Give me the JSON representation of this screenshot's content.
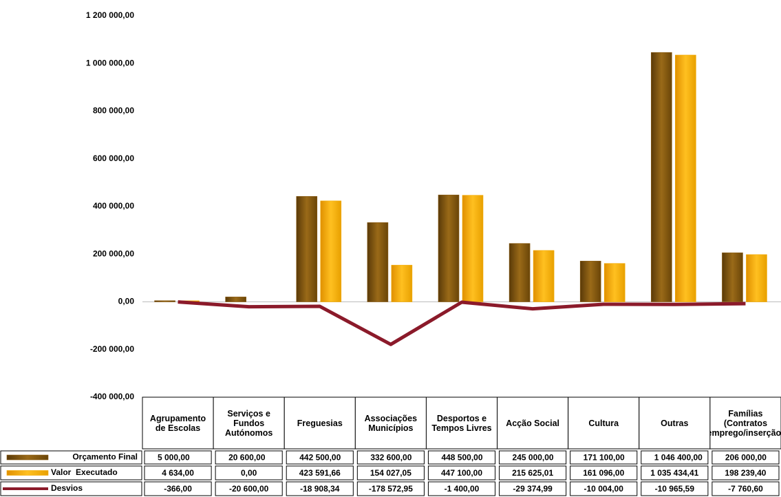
{
  "chart_data": {
    "type": "bar",
    "categories": [
      "Agrupamento de Escolas",
      "Serviços e Fundos Autónomos",
      "Freguesias",
      "Associações Municípios",
      "Desportos e Tempos Livres",
      "Acção Social",
      "Cultura",
      "Outras",
      "Famílias (Contratos emprego/inserção)"
    ],
    "series": [
      {
        "name": "Orçamento Final",
        "color": "#8a5a12",
        "type": "bar",
        "values": [
          5000,
          20600,
          442500,
          332600,
          448500,
          245000,
          171100,
          1046400,
          206000
        ],
        "value_labels": [
          "5 000,00",
          "20 600,00",
          "442 500,00",
          "332 600,00",
          "448 500,00",
          "245 000,00",
          "171 100,00",
          "1 046 400,00",
          "206 000,00"
        ]
      },
      {
        "name": "Valor  Executado",
        "color": "#f2a900",
        "type": "bar",
        "values": [
          4634,
          0,
          423591.66,
          154027.05,
          447100,
          215625.01,
          161096,
          1035434.41,
          198239.4
        ],
        "value_labels": [
          "4 634,00",
          "0,00",
          "423 591,66",
          "154 027,05",
          "447 100,00",
          "215 625,01",
          "161 096,00",
          "1 035 434,41",
          "198 239,40"
        ]
      },
      {
        "name": "Desvios",
        "color": "#8b1a2a",
        "type": "line",
        "values": [
          -366,
          -20600,
          -18908.34,
          -178572.95,
          -1400,
          -29374.99,
          -10004,
          -10965.59,
          -7760.6
        ],
        "value_labels": [
          "-366,00",
          "-20 600,00",
          "-18 908,34",
          "-178 572,95",
          "-1 400,00",
          "-29 374,99",
          "-10 004,00",
          "-10 965,59",
          "-7 760,60"
        ]
      }
    ],
    "ylim": [
      -400000,
      1200000
    ],
    "yticks": [
      {
        "value": -400000,
        "label": "-400 000,00"
      },
      {
        "value": -200000,
        "label": "-200 000,00"
      },
      {
        "value": 0,
        "label": "0,00"
      },
      {
        "value": 200000,
        "label": "200 000,00"
      },
      {
        "value": 400000,
        "label": "400 000,00"
      },
      {
        "value": 600000,
        "label": "600 000,00"
      },
      {
        "value": 800000,
        "label": "800 000,00"
      },
      {
        "value": 1000000,
        "label": "1 000 000,00"
      },
      {
        "value": 1200000,
        "label": "1 200 000,00"
      }
    ],
    "grid": false
  }
}
